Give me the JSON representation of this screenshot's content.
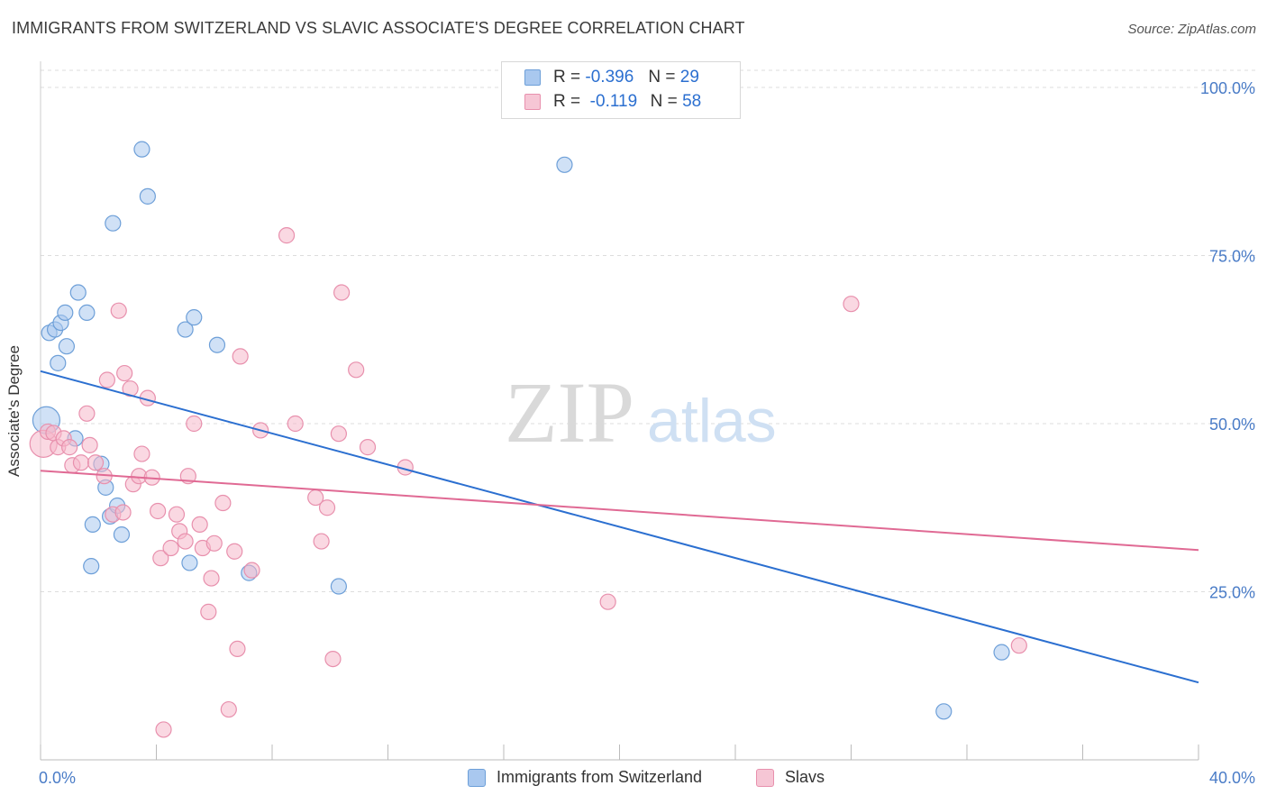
{
  "title": "IMMIGRANTS FROM SWITZERLAND VS SLAVIC ASSOCIATE'S DEGREE CORRELATION CHART",
  "source": "Source: ZipAtlas.com",
  "watermark": {
    "zip": "ZIP",
    "atlas": "atlas"
  },
  "colors": {
    "blue_fill": "#a9c8ef",
    "blue_stroke": "#6d9fd8",
    "blue_line": "#2b6fd0",
    "pink_fill": "#f6b8cb",
    "pink_stroke": "#e890ad",
    "pink_line": "#e06a94",
    "axis_text": "#4a7cc7",
    "grid": "#dddddd"
  },
  "legend": {
    "rows": [
      {
        "r_label": "R =",
        "r_value": "-0.396",
        "n_label": "N =",
        "n_value": "29"
      },
      {
        "r_label": "R =",
        "r_value": "-0.119",
        "n_label": "N =",
        "n_value": "58"
      }
    ]
  },
  "bottom_legend": [
    "Immigrants from Switzerland",
    "Slavs"
  ],
  "chart_data": {
    "type": "scatter",
    "ylabel": "Associate's Degree",
    "xlabel": "",
    "xlim": [
      0,
      40
    ],
    "ylim": [
      0,
      100
    ],
    "x_tick_labels": [
      "0.0%",
      "40.0%"
    ],
    "y_tick_labels": [
      "100.0%",
      "75.0%",
      "50.0%",
      "25.0%"
    ],
    "y_tick_values": [
      100,
      75,
      50,
      25
    ],
    "x_minor_ticks": [
      0,
      4,
      8,
      12,
      16,
      20,
      24,
      28,
      32,
      36,
      40
    ],
    "grid": true,
    "series": [
      {
        "name": "Immigrants from Switzerland",
        "color": "blue",
        "points": [
          [
            0.2,
            50.5
          ],
          [
            0.3,
            63.5
          ],
          [
            0.5,
            64
          ],
          [
            0.6,
            59
          ],
          [
            0.7,
            65
          ],
          [
            0.9,
            61.5
          ],
          [
            0.85,
            66.5
          ],
          [
            1.3,
            69.5
          ],
          [
            1.6,
            66.5
          ],
          [
            1.2,
            47.8
          ],
          [
            1.8,
            35
          ],
          [
            1.75,
            28.8
          ],
          [
            2.1,
            44
          ],
          [
            2.25,
            40.5
          ],
          [
            2.4,
            36.2
          ],
          [
            2.65,
            37.8
          ],
          [
            2.8,
            33.5
          ],
          [
            2.5,
            79.8
          ],
          [
            3.5,
            90.8
          ],
          [
            3.7,
            83.8
          ],
          [
            5.0,
            64
          ],
          [
            5.15,
            29.3
          ],
          [
            5.3,
            65.8
          ],
          [
            6.1,
            61.7
          ],
          [
            7.2,
            27.8
          ],
          [
            10.3,
            25.8
          ],
          [
            18.1,
            88.5
          ],
          [
            31.2,
            7.2
          ],
          [
            33.2,
            16
          ]
        ],
        "trend": {
          "x": [
            0,
            40
          ],
          "y": [
            57.8,
            11.5
          ]
        }
      },
      {
        "name": "Slavs",
        "color": "pink",
        "points": [
          [
            0.1,
            47
          ],
          [
            0.25,
            48.8
          ],
          [
            0.45,
            48.6
          ],
          [
            0.6,
            46.5
          ],
          [
            0.8,
            47.8
          ],
          [
            1.0,
            46.5
          ],
          [
            1.1,
            43.8
          ],
          [
            1.4,
            44.2
          ],
          [
            1.6,
            51.5
          ],
          [
            1.7,
            46.8
          ],
          [
            1.9,
            44.2
          ],
          [
            2.2,
            42.2
          ],
          [
            2.3,
            56.5
          ],
          [
            2.5,
            36.5
          ],
          [
            2.7,
            66.8
          ],
          [
            2.85,
            36.8
          ],
          [
            2.9,
            57.5
          ],
          [
            3.1,
            55.2
          ],
          [
            3.2,
            41
          ],
          [
            3.4,
            42.2
          ],
          [
            3.5,
            45.5
          ],
          [
            3.7,
            53.8
          ],
          [
            3.85,
            42
          ],
          [
            4.05,
            37
          ],
          [
            4.15,
            30
          ],
          [
            4.25,
            4.5
          ],
          [
            4.5,
            31.5
          ],
          [
            4.7,
            36.5
          ],
          [
            4.8,
            34
          ],
          [
            5.0,
            32.5
          ],
          [
            5.1,
            42.2
          ],
          [
            5.3,
            50
          ],
          [
            5.5,
            35
          ],
          [
            5.6,
            31.5
          ],
          [
            5.8,
            22
          ],
          [
            5.9,
            27
          ],
          [
            6.0,
            32.2
          ],
          [
            6.3,
            38.2
          ],
          [
            6.5,
            7.5
          ],
          [
            6.7,
            31
          ],
          [
            6.8,
            16.5
          ],
          [
            6.9,
            60
          ],
          [
            7.3,
            28.2
          ],
          [
            7.6,
            49
          ],
          [
            8.5,
            78
          ],
          [
            8.8,
            50
          ],
          [
            9.5,
            39
          ],
          [
            9.7,
            32.5
          ],
          [
            9.9,
            37.5
          ],
          [
            10.1,
            15
          ],
          [
            10.3,
            48.5
          ],
          [
            10.4,
            69.5
          ],
          [
            10.9,
            58
          ],
          [
            11.3,
            46.5
          ],
          [
            12.6,
            43.5
          ],
          [
            19.6,
            23.5
          ],
          [
            28.0,
            67.8
          ],
          [
            33.8,
            17
          ]
        ],
        "trend": {
          "x": [
            0,
            40
          ],
          "y": [
            43,
            31.2
          ]
        }
      }
    ]
  }
}
